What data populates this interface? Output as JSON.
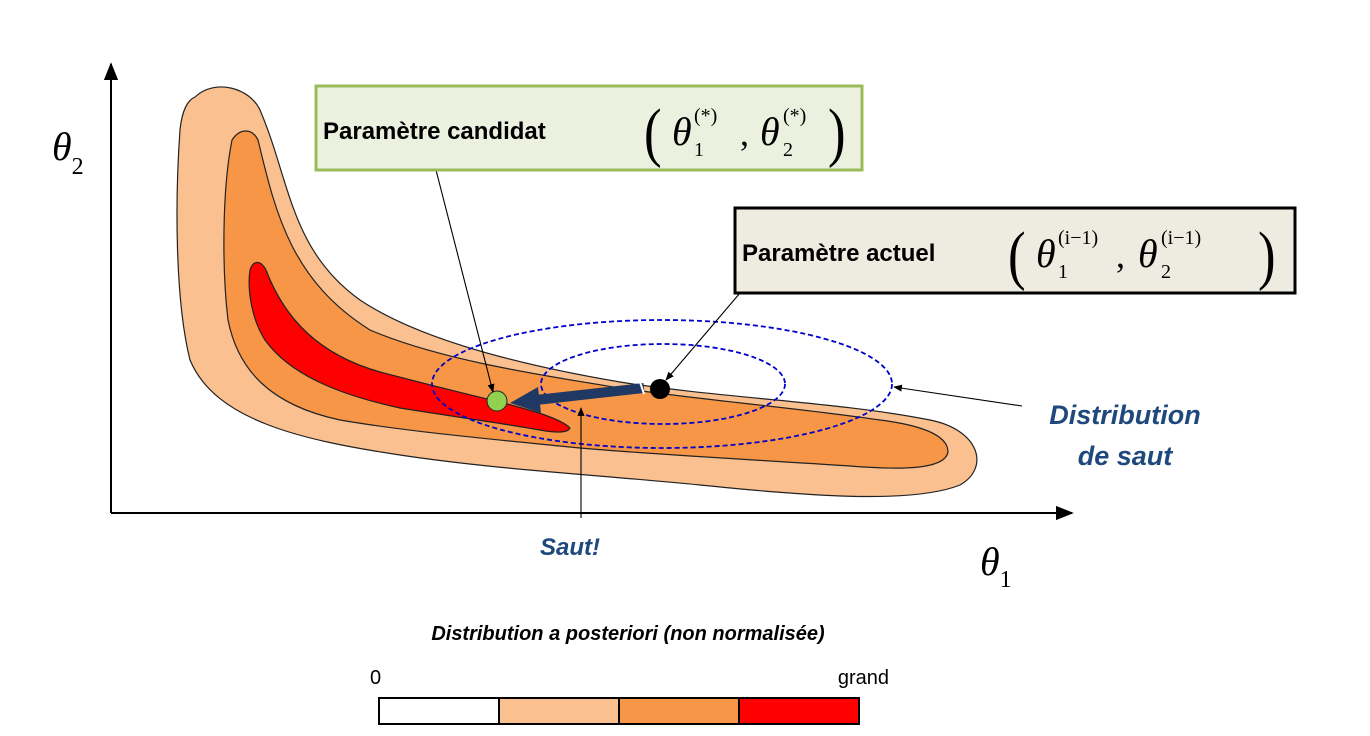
{
  "axes": {
    "y_symbol": "θ",
    "y_subscript": "2",
    "x_symbol": "θ",
    "x_subscript": "1"
  },
  "candidate_box": {
    "label": "Paramètre candidat",
    "theta": "θ",
    "sub1": "1",
    "sub2": "2",
    "sup": "(*)",
    "comma": ",",
    "open_paren": "(",
    "close_paren": ")",
    "fill": "#ebf1de",
    "border": "#9bbb59"
  },
  "current_box": {
    "label": "Paramètre actuel",
    "theta": "θ",
    "sub1": "1",
    "sub2": "2",
    "sup": "(i−1)",
    "comma": ",",
    "open_paren": "(",
    "close_paren": ")",
    "fill": "#eeece1",
    "border": "#000000"
  },
  "annotations": {
    "jump_distribution_line1": "Distribution",
    "jump_distribution_line2": "de saut",
    "jump": "Saut!"
  },
  "colors": {
    "level_1": "#fac090",
    "level_2": "#f79646",
    "level_3": "#ff0000",
    "jump_text": "#1f497d",
    "proposal_ellipse": "#0000cc",
    "jump_arrow": "#1f3864",
    "candidate_point": "#92d050"
  },
  "legend": {
    "title": "Distribution a posteriori (non normalisée)",
    "min_label": "0",
    "max_label": "grand",
    "swatches": [
      "#ffffff",
      "#fac090",
      "#f79646",
      "#ff0000"
    ]
  }
}
